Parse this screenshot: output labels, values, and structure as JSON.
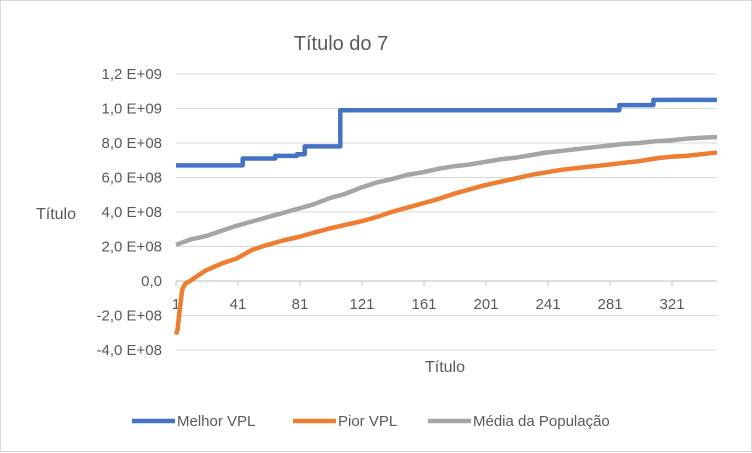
{
  "chart_data": {
    "type": "line",
    "title": "Título do 7",
    "xlabel": "Título",
    "ylabel": "Título",
    "ylim": [
      -400000000,
      1200000000
    ],
    "y_ticks": [
      1200000000,
      1000000000,
      800000000,
      600000000,
      400000000,
      200000000,
      0,
      -200000000,
      -400000000
    ],
    "y_tick_labels": [
      "1,2 E+09",
      "1,0 E+09",
      "8,0 E+08",
      "6,0 E+08",
      "4,0 E+08",
      "2,0 E+08",
      "0,0",
      "-2,0 E+08",
      "-4,0 E+08"
    ],
    "xlim": [
      1,
      350
    ],
    "x_ticks": [
      1,
      41,
      81,
      121,
      161,
      201,
      241,
      281,
      321
    ],
    "x_tick_labels": [
      "1",
      "41",
      "81",
      "121",
      "161",
      "201",
      "241",
      "281",
      "321"
    ],
    "grid": true,
    "legend_position": "bottom",
    "series": [
      {
        "name": "Melhor VPL",
        "color": "#4472c4",
        "points": [
          [
            1,
            670000000
          ],
          [
            44,
            670000000
          ],
          [
            44,
            710000000
          ],
          [
            65,
            710000000
          ],
          [
            65,
            725000000
          ],
          [
            79,
            725000000
          ],
          [
            79,
            735000000
          ],
          [
            84,
            735000000
          ],
          [
            84,
            780000000
          ],
          [
            107,
            780000000
          ],
          [
            107,
            990000000
          ],
          [
            287,
            990000000
          ],
          [
            287,
            1020000000
          ],
          [
            309,
            1020000000
          ],
          [
            309,
            1050000000
          ],
          [
            350,
            1050000000
          ]
        ]
      },
      {
        "name": "Pior VPL",
        "color": "#ed7d31",
        "points": [
          [
            1,
            -310000000
          ],
          [
            2,
            -280000000
          ],
          [
            3,
            -200000000
          ],
          [
            4,
            -120000000
          ],
          [
            5,
            -50000000
          ],
          [
            7,
            -15000000
          ],
          [
            10,
            0
          ],
          [
            15,
            30000000
          ],
          [
            20,
            60000000
          ],
          [
            30,
            100000000
          ],
          [
            40,
            130000000
          ],
          [
            50,
            180000000
          ],
          [
            60,
            210000000
          ],
          [
            70,
            235000000
          ],
          [
            80,
            255000000
          ],
          [
            90,
            280000000
          ],
          [
            100,
            305000000
          ],
          [
            110,
            325000000
          ],
          [
            120,
            345000000
          ],
          [
            130,
            370000000
          ],
          [
            140,
            400000000
          ],
          [
            150,
            425000000
          ],
          [
            160,
            450000000
          ],
          [
            170,
            475000000
          ],
          [
            180,
            505000000
          ],
          [
            190,
            530000000
          ],
          [
            200,
            555000000
          ],
          [
            210,
            575000000
          ],
          [
            220,
            595000000
          ],
          [
            230,
            615000000
          ],
          [
            240,
            630000000
          ],
          [
            250,
            645000000
          ],
          [
            260,
            655000000
          ],
          [
            270,
            665000000
          ],
          [
            280,
            675000000
          ],
          [
            290,
            685000000
          ],
          [
            300,
            695000000
          ],
          [
            310,
            710000000
          ],
          [
            320,
            720000000
          ],
          [
            330,
            725000000
          ],
          [
            340,
            735000000
          ],
          [
            350,
            745000000
          ]
        ]
      },
      {
        "name": "Média da População",
        "color": "#a5a5a5",
        "points": [
          [
            1,
            210000000
          ],
          [
            10,
            240000000
          ],
          [
            20,
            260000000
          ],
          [
            30,
            290000000
          ],
          [
            40,
            320000000
          ],
          [
            50,
            345000000
          ],
          [
            60,
            370000000
          ],
          [
            70,
            395000000
          ],
          [
            80,
            420000000
          ],
          [
            90,
            445000000
          ],
          [
            100,
            480000000
          ],
          [
            110,
            505000000
          ],
          [
            120,
            540000000
          ],
          [
            130,
            570000000
          ],
          [
            140,
            590000000
          ],
          [
            150,
            615000000
          ],
          [
            160,
            630000000
          ],
          [
            170,
            650000000
          ],
          [
            180,
            665000000
          ],
          [
            190,
            675000000
          ],
          [
            200,
            690000000
          ],
          [
            210,
            705000000
          ],
          [
            220,
            715000000
          ],
          [
            230,
            730000000
          ],
          [
            240,
            745000000
          ],
          [
            250,
            755000000
          ],
          [
            260,
            765000000
          ],
          [
            270,
            775000000
          ],
          [
            280,
            785000000
          ],
          [
            290,
            795000000
          ],
          [
            300,
            800000000
          ],
          [
            310,
            810000000
          ],
          [
            320,
            815000000
          ],
          [
            330,
            825000000
          ],
          [
            340,
            830000000
          ],
          [
            350,
            835000000
          ]
        ]
      }
    ]
  }
}
